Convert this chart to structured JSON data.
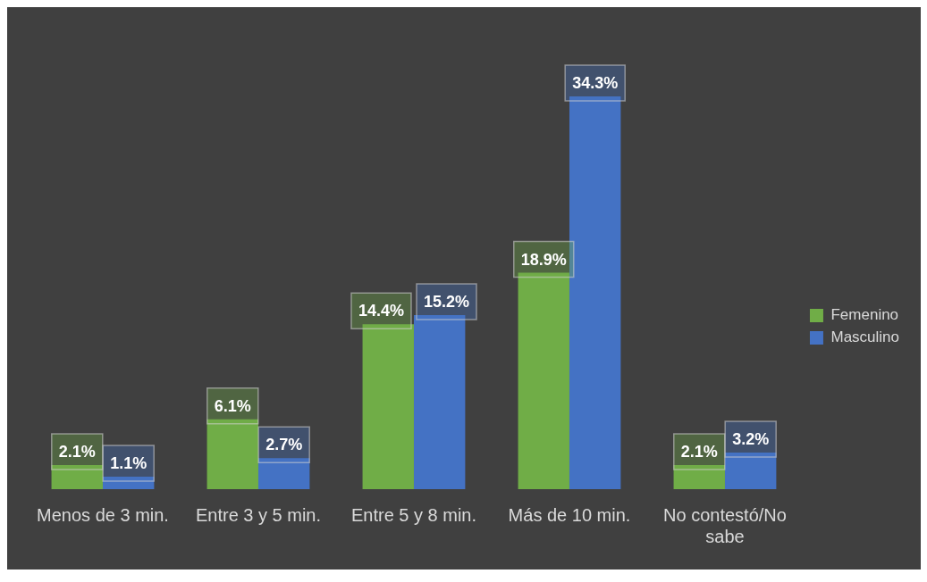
{
  "chart_data": {
    "type": "bar",
    "categories": [
      "Menos de 3 min.",
      "Entre 3 y 5 min.",
      "Entre 5 y 8 min.",
      "Más de 10 min.",
      "No contestó/No sabe"
    ],
    "series": [
      {
        "name": "Femenino",
        "color": "#70ad47",
        "values": [
          2.1,
          6.1,
          14.4,
          18.9,
          2.1
        ],
        "value_labels": [
          "2.1%",
          "6.1%",
          "14.4%",
          "18.9%",
          "2.1%"
        ]
      },
      {
        "name": "Masculino",
        "color": "#4472c4",
        "values": [
          1.1,
          2.7,
          15.2,
          34.3,
          3.2
        ],
        "value_labels": [
          "1.1%",
          "2.7%",
          "15.2%",
          "34.3%",
          "3.2%"
        ]
      }
    ],
    "legend": "right"
  }
}
